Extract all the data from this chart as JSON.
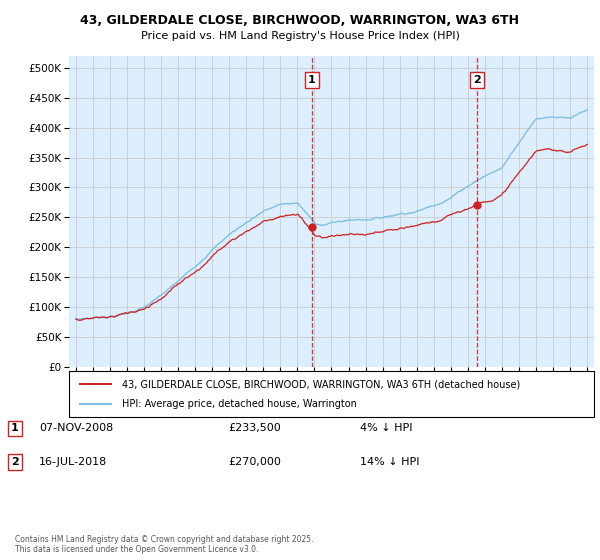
{
  "title1": "43, GILDERDALE CLOSE, BIRCHWOOD, WARRINGTON, WA3 6TH",
  "title2": "Price paid vs. HM Land Registry's House Price Index (HPI)",
  "legend_line1": "43, GILDERDALE CLOSE, BIRCHWOOD, WARRINGTON, WA3 6TH (detached house)",
  "legend_line2": "HPI: Average price, detached house, Warrington",
  "annotation1_label": "1",
  "annotation1_date": "07-NOV-2008",
  "annotation1_price": "£233,500",
  "annotation1_note": "4% ↓ HPI",
  "annotation2_label": "2",
  "annotation2_date": "16-JUL-2018",
  "annotation2_price": "£270,000",
  "annotation2_note": "14% ↓ HPI",
  "sale1_year": 2008.85,
  "sale1_value": 233500,
  "sale2_year": 2018.54,
  "sale2_value": 270000,
  "hpi_color": "#7fbfdf",
  "price_color": "#cc2222",
  "vline_color": "#cc2222",
  "grid_color": "#cccccc",
  "plot_bg": "#ddeeff",
  "ylim_min": 0,
  "ylim_max": 520000,
  "yticks": [
    0,
    50000,
    100000,
    150000,
    200000,
    250000,
    300000,
    350000,
    400000,
    450000,
    500000
  ],
  "xmin": 1994.6,
  "xmax": 2025.4,
  "copyright": "Contains HM Land Registry data © Crown copyright and database right 2025.\nThis data is licensed under the Open Government Licence v3.0."
}
